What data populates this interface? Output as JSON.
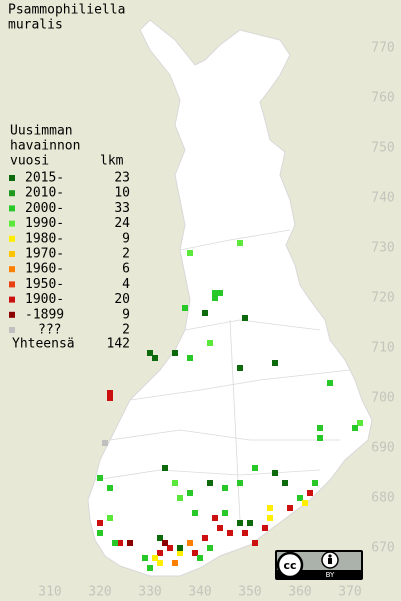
{
  "title": [
    "Psammophiliella",
    "muralis"
  ],
  "map": {
    "xlim": [
      300,
      380
    ],
    "ylim": [
      660,
      780
    ],
    "xticks": [
      310,
      320,
      330,
      340,
      350,
      360,
      370
    ],
    "yticks": [
      670,
      680,
      690,
      700,
      710,
      720,
      730,
      740,
      750,
      760,
      770
    ]
  },
  "legend": {
    "heading": [
      "Uusimman",
      "havainnon",
      "vuosi"
    ],
    "count_header": "lkm",
    "rows": [
      {
        "label": "2015-",
        "count": 23,
        "color": "#0c6a0c"
      },
      {
        "label": "2010-",
        "count": 10,
        "color": "#1f9a1f"
      },
      {
        "label": "2000-",
        "count": 33,
        "color": "#28c828"
      },
      {
        "label": "1990-",
        "count": 24,
        "color": "#5ae83a"
      },
      {
        "label": "1980-",
        "count": 9,
        "color": "#ffee00"
      },
      {
        "label": "1970-",
        "count": 2,
        "color": "#ffc400"
      },
      {
        "label": "1960-",
        "count": 6,
        "color": "#ff7f00"
      },
      {
        "label": "1950-",
        "count": 4,
        "color": "#e84010"
      },
      {
        "label": "1900-",
        "count": 20,
        "color": "#cc1010"
      },
      {
        "label": "-1899",
        "count": 9,
        "color": "#8a0000"
      },
      {
        "label": "???",
        "count": 2,
        "color": "#c0c0c0"
      }
    ],
    "total_label": "Yhteensä",
    "total": 142
  },
  "observations": [
    [
      348,
      731,
      3
    ],
    [
      338,
      729,
      3
    ],
    [
      337,
      718,
      2
    ],
    [
      343,
      721,
      2
    ],
    [
      344,
      721,
      2
    ],
    [
      343,
      720,
      2
    ],
    [
      341,
      717,
      0
    ],
    [
      342,
      711,
      3
    ],
    [
      349,
      716,
      0
    ],
    [
      330,
      709,
      0
    ],
    [
      331,
      708,
      0
    ],
    [
      335,
      709,
      0
    ],
    [
      338,
      708,
      2
    ],
    [
      348,
      706,
      0
    ],
    [
      355,
      707,
      0
    ],
    [
      322,
      701,
      8
    ],
    [
      322,
      700,
      8
    ],
    [
      366,
      703,
      2
    ],
    [
      372,
      695,
      3
    ],
    [
      371,
      694,
      2
    ],
    [
      364,
      694,
      2
    ],
    [
      364,
      692,
      2
    ],
    [
      321,
      691,
      10
    ],
    [
      320,
      684,
      2
    ],
    [
      322,
      682,
      2
    ],
    [
      322,
      676,
      3
    ],
    [
      320,
      675,
      8
    ],
    [
      333,
      686,
      0
    ],
    [
      335,
      683,
      3
    ],
    [
      336,
      680,
      3
    ],
    [
      338,
      681,
      2
    ],
    [
      339,
      677,
      2
    ],
    [
      342,
      683,
      0
    ],
    [
      345,
      682,
      2
    ],
    [
      348,
      683,
      2
    ],
    [
      351,
      686,
      2
    ],
    [
      355,
      685,
      0
    ],
    [
      357,
      683,
      0
    ],
    [
      360,
      680,
      2
    ],
    [
      363,
      683,
      2
    ],
    [
      362,
      681,
      8
    ],
    [
      361,
      679,
      4
    ],
    [
      358,
      678,
      8
    ],
    [
      354,
      678,
      4
    ],
    [
      354,
      676,
      4
    ],
    [
      353,
      674,
      8
    ],
    [
      348,
      675,
      0
    ],
    [
      350,
      675,
      0
    ],
    [
      346,
      673,
      8
    ],
    [
      349,
      673,
      8
    ],
    [
      344,
      674,
      8
    ],
    [
      343,
      676,
      8
    ],
    [
      341,
      672,
      8
    ],
    [
      342,
      670,
      2
    ],
    [
      339,
      669,
      8
    ],
    [
      338,
      671,
      6
    ],
    [
      334,
      670,
      8
    ],
    [
      332,
      669,
      8
    ],
    [
      331,
      668,
      4
    ],
    [
      332,
      667,
      4
    ],
    [
      336,
      669,
      4
    ],
    [
      335,
      667,
      6
    ],
    [
      330,
      666,
      2
    ],
    [
      329,
      668,
      2
    ],
    [
      326,
      671,
      9
    ],
    [
      324,
      671,
      8
    ],
    [
      323,
      671,
      2
    ],
    [
      332,
      672,
      0
    ],
    [
      351,
      671,
      8
    ],
    [
      345,
      677,
      2
    ],
    [
      336,
      670,
      0
    ],
    [
      333,
      671,
      9
    ],
    [
      320,
      673,
      2
    ],
    [
      340,
      668,
      2
    ]
  ],
  "license_badge": {
    "cc": "cc",
    "by": "BY"
  }
}
